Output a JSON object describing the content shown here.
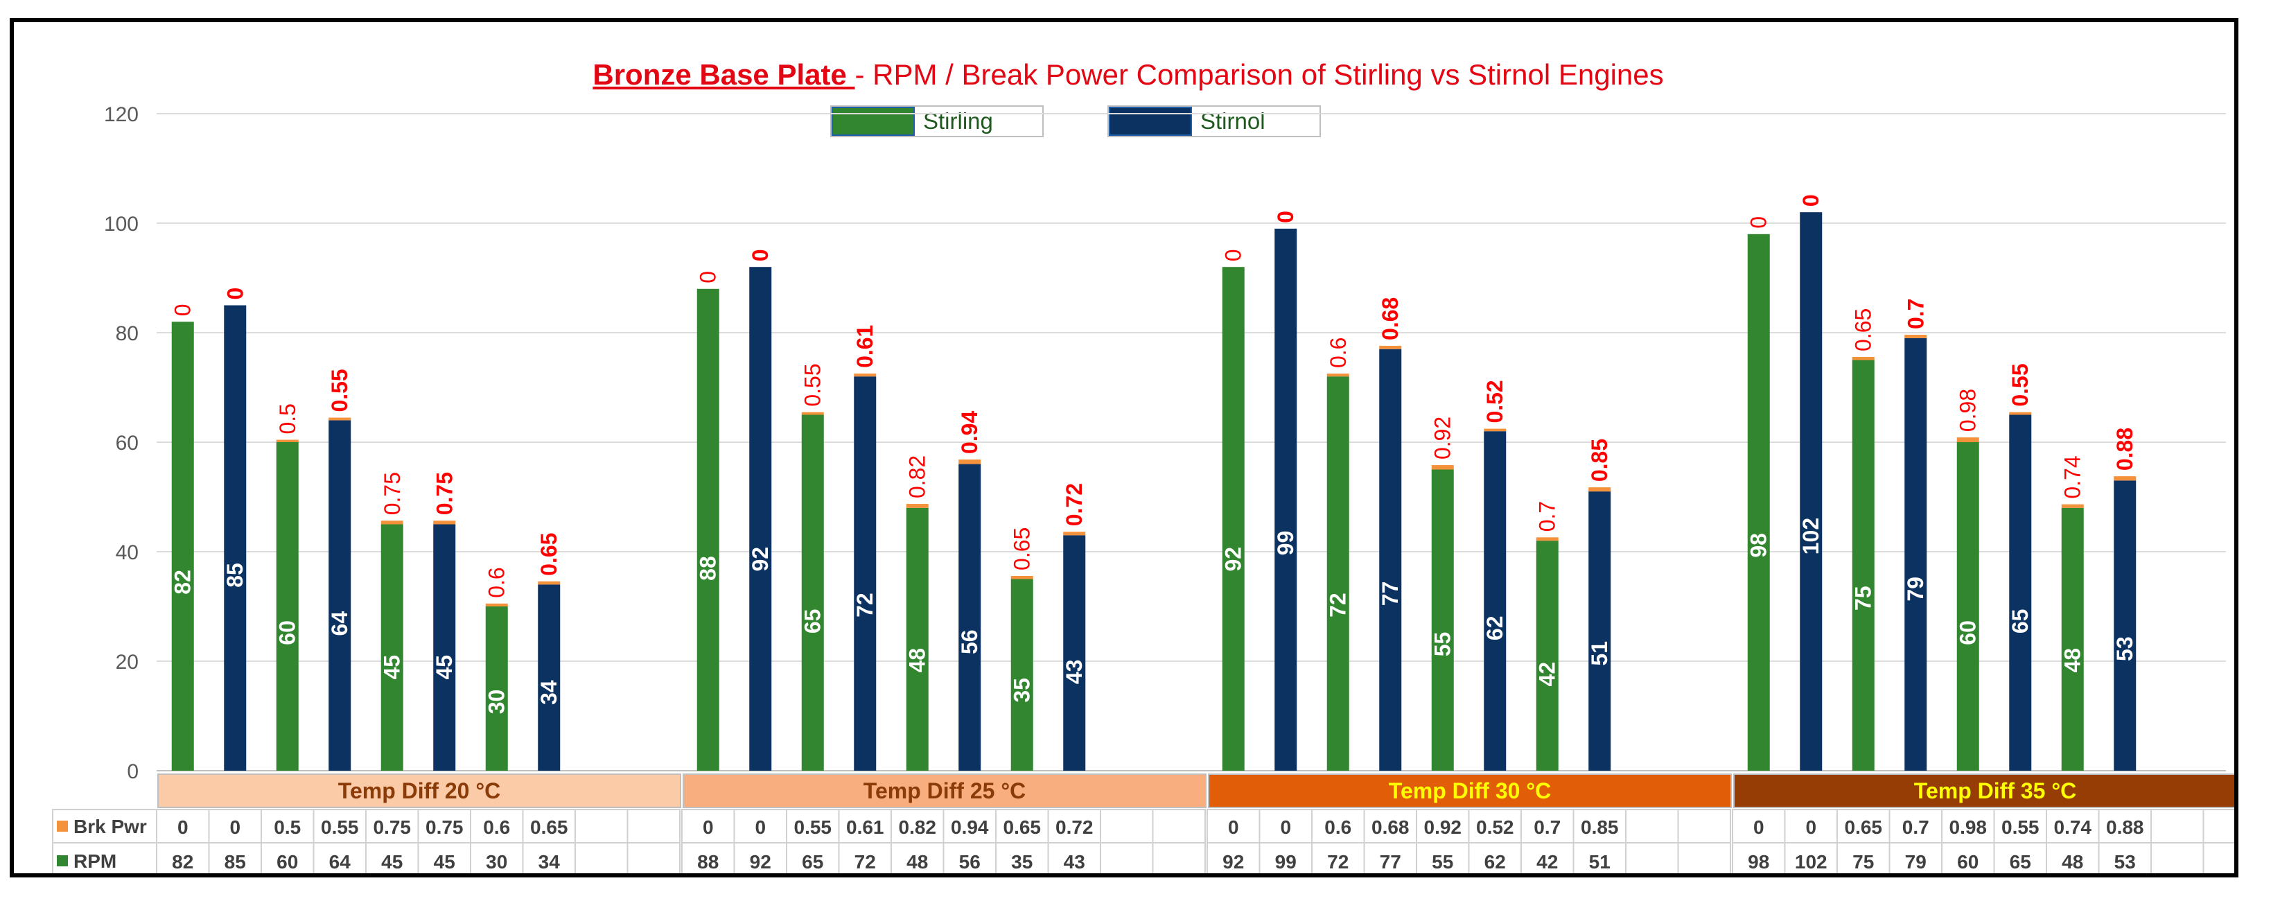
{
  "chart_data": {
    "type": "bar",
    "title_bold": "Bronze Base Plate ",
    "title_rest": "- RPM / Break Power Comparison of Stirling vs Stirnol Engines",
    "ylim": [
      0,
      120
    ],
    "y_ticks": [
      "0",
      "20",
      "40",
      "60",
      "80",
      "100",
      "120"
    ],
    "grid": true,
    "legend": [
      "Stirling",
      "Stirnol"
    ],
    "series_colors": {
      "Stirling": "#31862f",
      "Stirnol": "#0c3262",
      "Brk Pwr": "#f4913b"
    },
    "table_rows": [
      "Brk Pwr",
      "RPM"
    ],
    "groups": [
      {
        "label": "Temp Diff 20 °C",
        "header_color": "#fbcaa6",
        "header_text_color": "#8a3b08",
        "rpm": [
          82,
          85,
          60,
          64,
          45,
          45,
          30,
          34
        ],
        "rpm_labels": [
          "82",
          "85",
          "60",
          "64",
          "45",
          "45",
          "30",
          "34"
        ],
        "brk_pwr": [
          0,
          0,
          0.5,
          0.55,
          0.75,
          0.75,
          0.6,
          0.65
        ],
        "brk_labels": [
          "0",
          "0",
          "0.5",
          "0.55",
          "0.75",
          "0.75",
          "0.6",
          "0.65"
        ]
      },
      {
        "label": "Temp Diff 25 °C",
        "header_color": "#f9ae7f",
        "header_text_color": "#8a3b08",
        "rpm": [
          88,
          92,
          65,
          72,
          48,
          56,
          35,
          43
        ],
        "rpm_labels": [
          "88",
          "92",
          "65",
          "72",
          "48",
          "56",
          "35",
          "43"
        ],
        "brk_pwr": [
          0,
          0,
          0.55,
          0.61,
          0.82,
          0.94,
          0.65,
          0.72
        ],
        "brk_labels": [
          "0",
          "0",
          "0.55",
          "0.61",
          "0.82",
          "0.94",
          "0.65",
          "0.72"
        ]
      },
      {
        "label": "Temp Diff 30 °C",
        "header_color": "#e25d08",
        "header_text_color": "#ffff00",
        "rpm": [
          92,
          99,
          72,
          77,
          55,
          62,
          42,
          51
        ],
        "rpm_labels": [
          "92",
          "99",
          "72",
          "77",
          "55",
          "62",
          "42",
          "51"
        ],
        "brk_pwr": [
          0,
          0,
          0.6,
          0.68,
          0.92,
          0.52,
          0.7,
          0.85
        ],
        "brk_labels": [
          "0",
          "0",
          "0.6",
          "0.68",
          "0.92",
          "0.52",
          "0.7",
          "0.85"
        ]
      },
      {
        "label": "Temp Diff 35 °C",
        "header_color": "#953d05",
        "header_text_color": "#ffff00",
        "rpm": [
          98,
          102,
          75,
          79,
          60,
          65,
          48,
          53
        ],
        "rpm_labels": [
          "98",
          "102",
          "75",
          "79",
          "60",
          "65",
          "48",
          "53"
        ],
        "brk_pwr": [
          0,
          0,
          0.65,
          0.7,
          0.98,
          0.55,
          0.74,
          0.88
        ],
        "brk_labels": [
          "0",
          "0",
          "0.65",
          "0.7",
          "0.98",
          "0.55",
          "0.74",
          "0.88"
        ]
      }
    ]
  }
}
